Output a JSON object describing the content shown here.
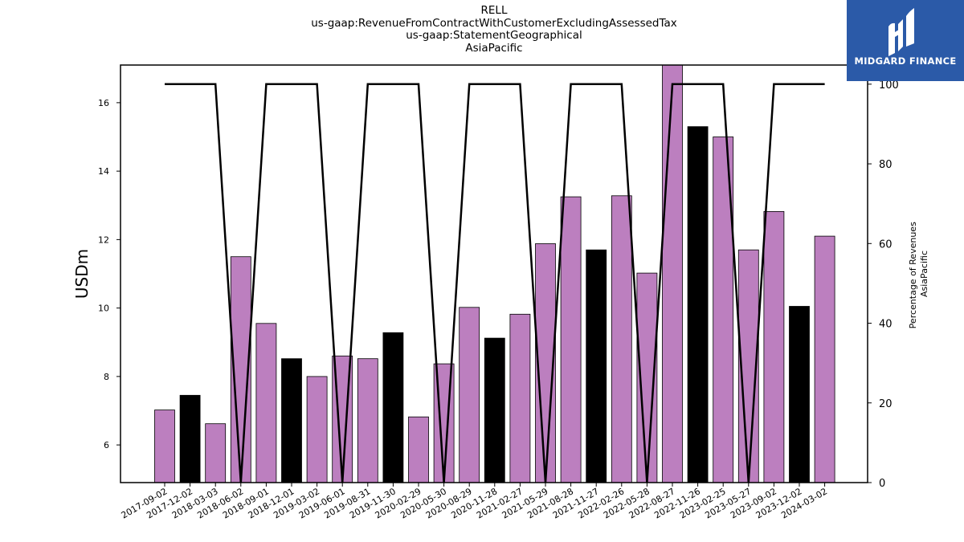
{
  "chart_data": {
    "type": "bar+line",
    "title_lines": [
      "RELL",
      "us-gaap:RevenueFromContractWithCustomerExcludingAssessedTax",
      "us-gaap:StatementGeographical",
      "AsiaPacific"
    ],
    "ylabel": "USDm",
    "y2label_lines": [
      "Percentage of Revenues",
      "AsiaPacific"
    ],
    "ylim": [
      4.9,
      17.1
    ],
    "yticks": [
      6,
      8,
      10,
      12,
      14,
      16
    ],
    "y2lim": [
      0,
      104.8
    ],
    "y2ticks": [
      0,
      20,
      40,
      60,
      80,
      100
    ],
    "categories": [
      "2017-09-02",
      "2017-12-02",
      "2018-03-03",
      "2018-06-02",
      "2018-09-01",
      "2018-12-01",
      "2019-03-02",
      "2019-06-01",
      "2019-08-31",
      "2019-11-30",
      "2020-02-29",
      "2020-05-30",
      "2020-08-29",
      "2020-11-28",
      "2021-02-27",
      "2021-05-29",
      "2021-08-28",
      "2021-11-27",
      "2022-02-26",
      "2022-05-28",
      "2022-08-27",
      "2022-11-26",
      "2023-02-25",
      "2023-05-27",
      "2023-09-02",
      "2023-12-02",
      "2024-03-02"
    ],
    "bar_values": [
      7.02,
      7.45,
      6.62,
      11.5,
      9.55,
      8.52,
      8.0,
      8.6,
      8.52,
      9.28,
      6.82,
      8.37,
      10.02,
      9.12,
      9.82,
      11.88,
      13.25,
      11.7,
      13.28,
      11.02,
      17.1,
      15.3,
      15.0,
      11.7,
      12.82,
      10.05,
      12.1
    ],
    "bar_colors": [
      "#bc7fbf",
      "#000000",
      "#bc7fbf",
      "#bc7fbf",
      "#bc7fbf",
      "#000000",
      "#bc7fbf",
      "#bc7fbf",
      "#bc7fbf",
      "#000000",
      "#bc7fbf",
      "#bc7fbf",
      "#bc7fbf",
      "#000000",
      "#bc7fbf",
      "#bc7fbf",
      "#bc7fbf",
      "#000000",
      "#bc7fbf",
      "#bc7fbf",
      "#bc7fbf",
      "#000000",
      "#bc7fbf",
      "#bc7fbf",
      "#bc7fbf",
      "#000000",
      "#bc7fbf"
    ],
    "line_values": [
      100,
      100,
      100,
      0,
      100,
      100,
      100,
      0,
      100,
      100,
      100,
      0,
      100,
      100,
      100,
      0,
      100,
      100,
      100,
      0,
      100,
      100,
      100,
      0,
      100,
      100,
      100
    ],
    "line_color": "#000000"
  },
  "logo": {
    "text": "MIDGARD FINANCE",
    "background": "#2b5aa8"
  }
}
